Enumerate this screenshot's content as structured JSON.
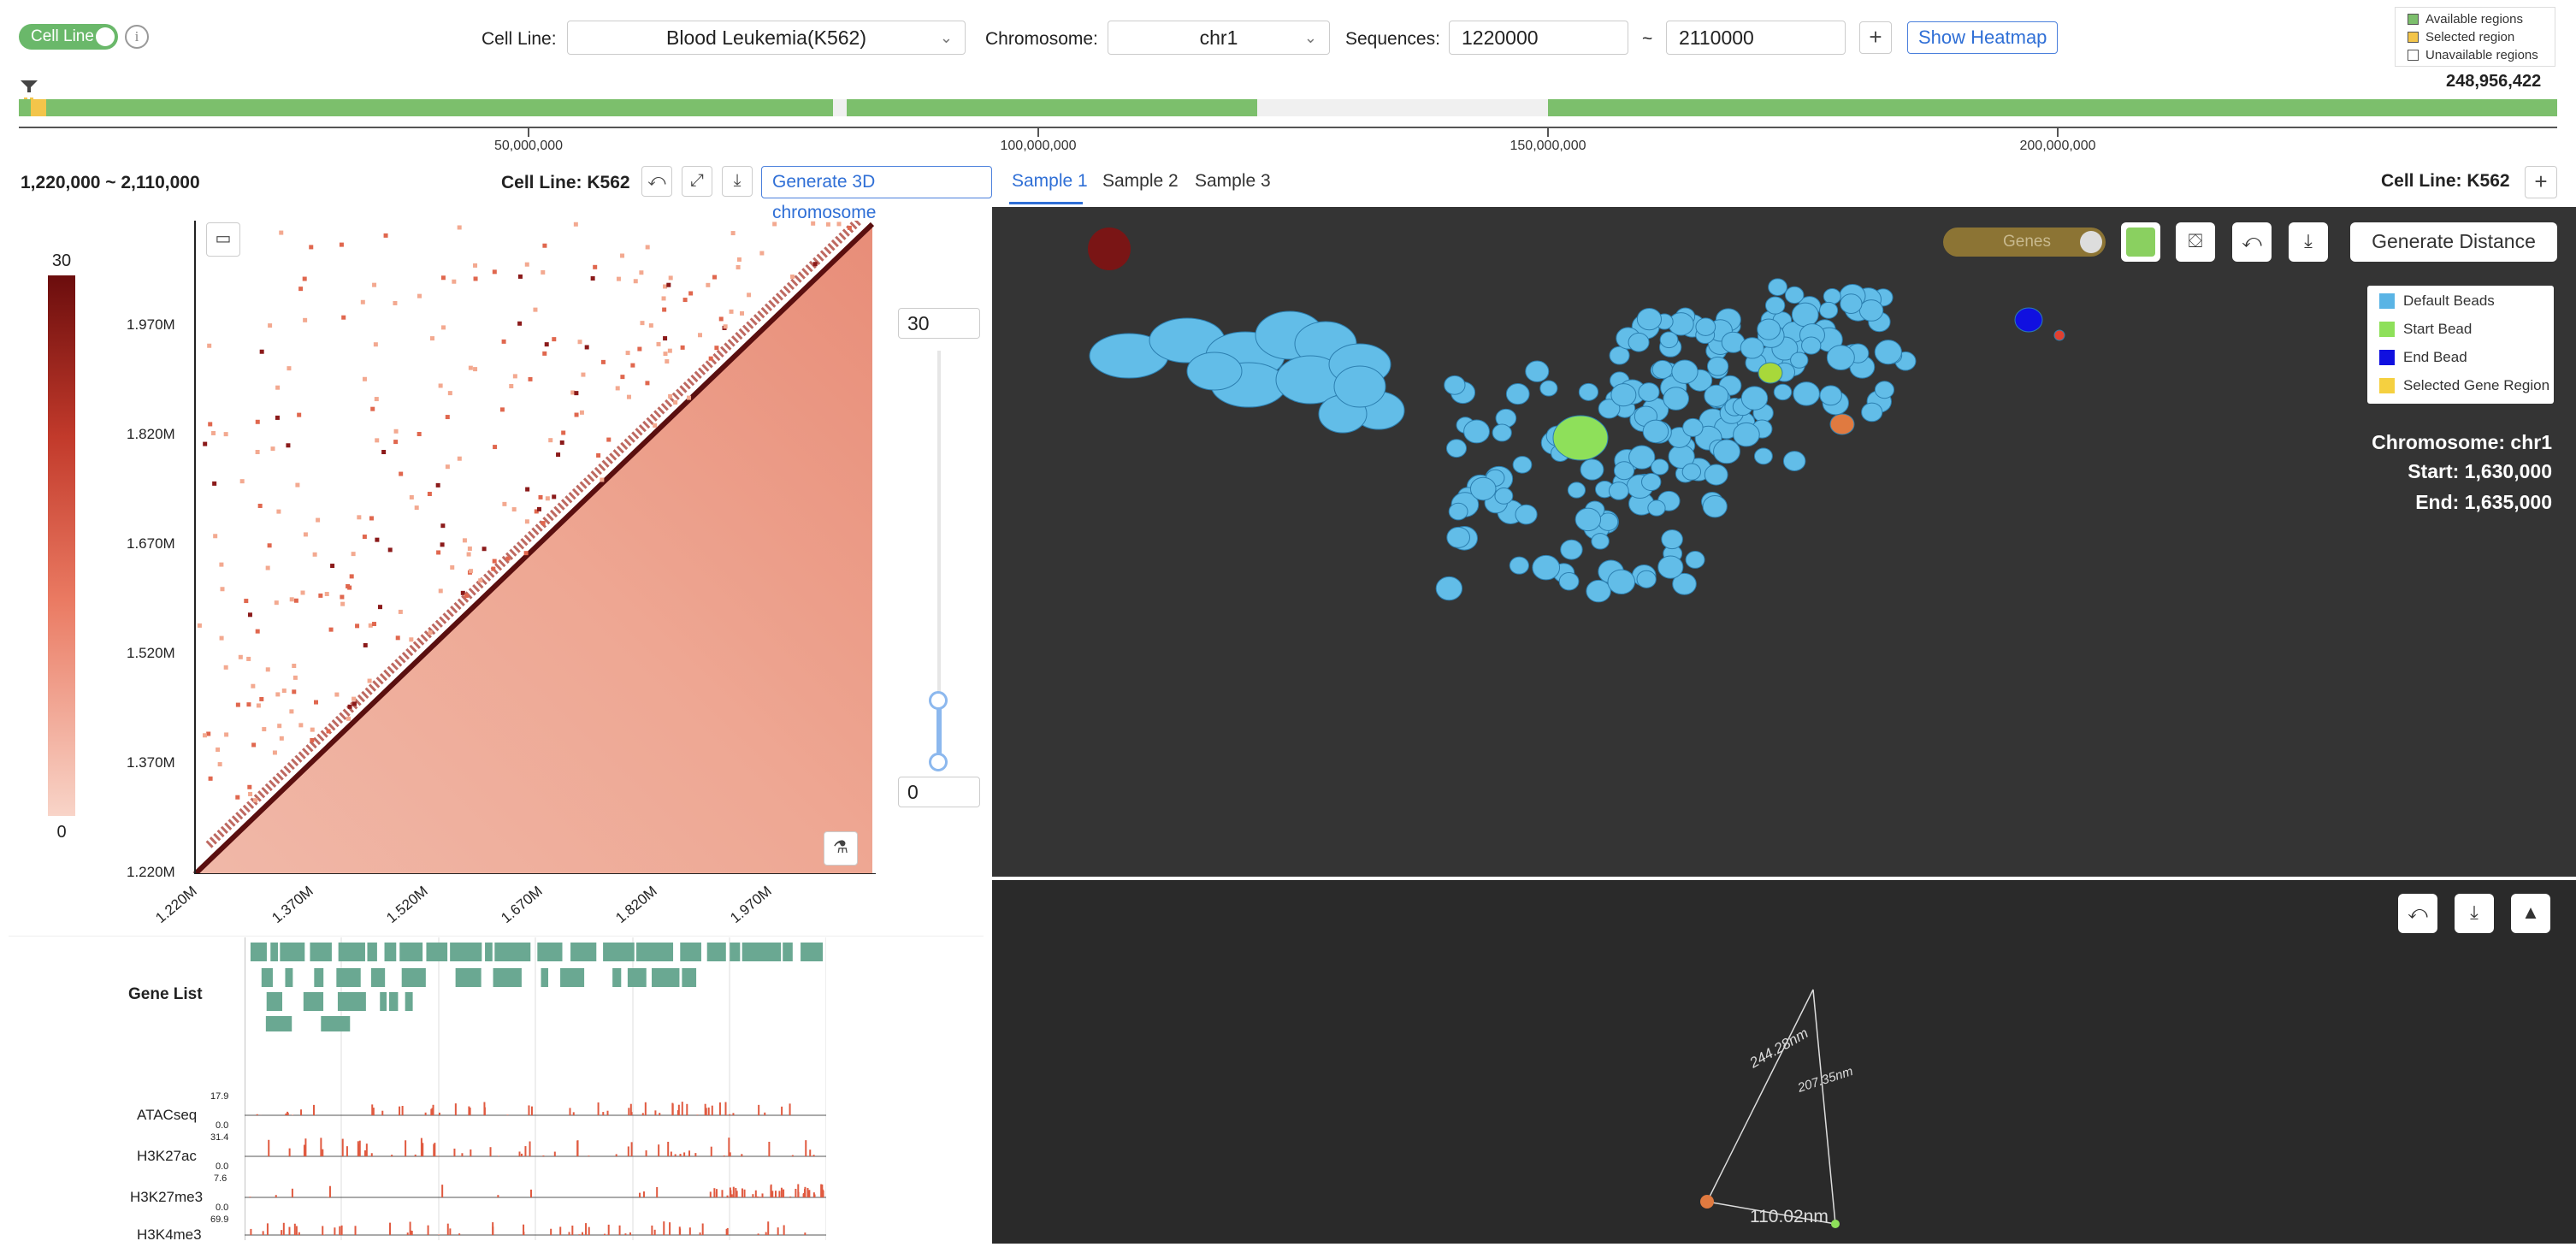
{
  "toolbar": {
    "cell_line_toggle_label": "Cell Line",
    "info_icon": "i",
    "cell_line_label": "Cell Line:",
    "cell_line_value": "Blood Leukemia(K562)",
    "chromosome_label": "Chromosome:",
    "chromosome_value": "chr1",
    "sequences_label": "Sequences:",
    "seq_start": "1220000",
    "seq_sep": "~",
    "seq_end": "2110000",
    "add_label": "+",
    "show_heatmap_label": "Show Heatmap"
  },
  "region_legend": {
    "available": "Available regions",
    "selected": "Selected region",
    "unavailable": "Unavailable regions",
    "available_color": "#7cbf6c",
    "selected_color": "#f3c54a",
    "unavailable_color": "#ffffff"
  },
  "chromosome_track": {
    "length_label": "248,956,422",
    "ticks": [
      "50,000,000",
      "100,000,000",
      "150,000,000",
      "200,000,000"
    ],
    "color": "#7cbf6c"
  },
  "heatmap_panel": {
    "range_label": "1,220,000 ~ 2,110,000",
    "cell_line_label": "Cell Line:",
    "cell_line_value": "K562",
    "generate_3d_label": "Generate 3D chromosome",
    "colorbar_max": "30",
    "colorbar_min": "0",
    "y_ticks": [
      "1.970M",
      "1.820M",
      "1.670M",
      "1.520M",
      "1.370M",
      "1.220M"
    ],
    "x_ticks": [
      "1.220M",
      "1.370M",
      "1.520M",
      "1.670M",
      "1.820M",
      "1.970M"
    ],
    "slider_max": "30",
    "slider_min": "0",
    "accent_color": "#8b1a1a"
  },
  "tracks": {
    "gene_list_label": "Gene List",
    "gene_color": "#6aa892",
    "signal_color": "#e05a40",
    "signals": [
      {
        "name": "ATACseq",
        "max": "17.9",
        "min": "0.0"
      },
      {
        "name": "H3K27ac",
        "max": "31.4",
        "min": "0.0"
      },
      {
        "name": "H3K27me3",
        "max": "7.6",
        "min": "0.0"
      },
      {
        "name": "H3K4me3",
        "max": "69.9",
        "min": ""
      }
    ]
  },
  "viewer": {
    "tabs": [
      "Sample 1",
      "Sample 2",
      "Sample 3"
    ],
    "cell_line_label": "Cell Line:",
    "cell_line_value": "K562",
    "add_tab_label": "+",
    "genes_toggle_label": "Genes",
    "generate_distance_label": "Generate Distance",
    "legend": [
      {
        "label": "Default Beads",
        "color": "#5ab4e5"
      },
      {
        "label": "Start Bead",
        "color": "#8ee05a"
      },
      {
        "label": "End Bead",
        "color": "#1010e0"
      },
      {
        "label": "Selected Gene Region",
        "color": "#f5d040"
      }
    ],
    "info_chromosome": "Chromosome: chr1",
    "info_start": "Start: 1,630,000",
    "info_end": "End: 1,635,000"
  },
  "distance": {
    "d1": "244.28nm",
    "d2": "207.35nm",
    "d3": "110.02nm"
  },
  "colors": {
    "accent_blue": "#2f6fd6",
    "toggle_green": "#6ab86a",
    "bead_blue": "#5ab4e5",
    "bead_green": "#8ee05a",
    "bead_dark_red": "#7a1515",
    "bead_orange": "#e07a40"
  }
}
